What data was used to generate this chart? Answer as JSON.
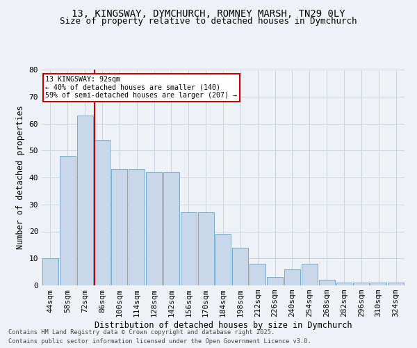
{
  "title": "13, KINGSWAY, DYMCHURCH, ROMNEY MARSH, TN29 0LY",
  "subtitle": "Size of property relative to detached houses in Dymchurch",
  "xlabel": "Distribution of detached houses by size in Dymchurch",
  "ylabel": "Number of detached properties",
  "footnote1": "Contains HM Land Registry data © Crown copyright and database right 2025.",
  "footnote2": "Contains public sector information licensed under the Open Government Licence v3.0.",
  "bins": [
    "44sqm",
    "58sqm",
    "72sqm",
    "86sqm",
    "100sqm",
    "114sqm",
    "128sqm",
    "142sqm",
    "156sqm",
    "170sqm",
    "184sqm",
    "198sqm",
    "212sqm",
    "226sqm",
    "240sqm",
    "254sqm",
    "268sqm",
    "282sqm",
    "296sqm",
    "310sqm",
    "324sqm"
  ],
  "values": [
    10,
    48,
    63,
    54,
    43,
    43,
    42,
    42,
    27,
    27,
    19,
    14,
    8,
    3,
    6,
    8,
    2,
    1,
    1,
    1,
    1
  ],
  "bar_color": "#c8d8ea",
  "bar_edge_color": "#7aaac8",
  "vline_x_index": 3,
  "vline_color": "#cc0000",
  "annotation_text": "13 KINGSWAY: 92sqm\n← 40% of detached houses are smaller (140)\n59% of semi-detached houses are larger (207) →",
  "annotation_box_facecolor": "#ffffff",
  "annotation_box_edgecolor": "#cc0000",
  "grid_color": "#c8d4e0",
  "bg_color": "#eef2f7",
  "ylim": [
    0,
    80
  ],
  "yticks": [
    0,
    10,
    20,
    30,
    40,
    50,
    60,
    70,
    80
  ],
  "title_fontsize": 10,
  "subtitle_fontsize": 9,
  "tick_fontsize": 8,
  "label_fontsize": 8.5
}
